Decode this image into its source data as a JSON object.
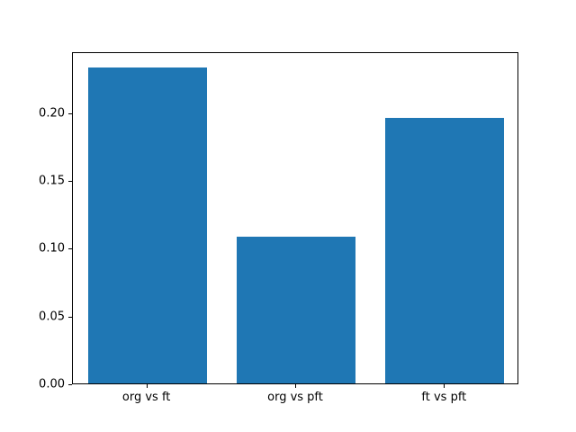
{
  "chart_data": {
    "type": "bar",
    "categories": [
      "org vs ft",
      "org vs pft",
      "ft vs pft"
    ],
    "values": [
      0.233,
      0.108,
      0.196
    ],
    "title": "",
    "xlabel": "",
    "ylabel": "",
    "ylim": [
      0,
      0.245
    ],
    "yticks": [
      0.0,
      0.05,
      0.1,
      0.15,
      0.2
    ],
    "ytick_labels": [
      "0.00",
      "0.05",
      "0.10",
      "0.15",
      "0.20"
    ],
    "bar_color": "#1f77b4",
    "axis_color": "#000000",
    "background_color": "#ffffff",
    "grid": false,
    "legend_position": "none",
    "bar_width_fraction": 0.8
  }
}
